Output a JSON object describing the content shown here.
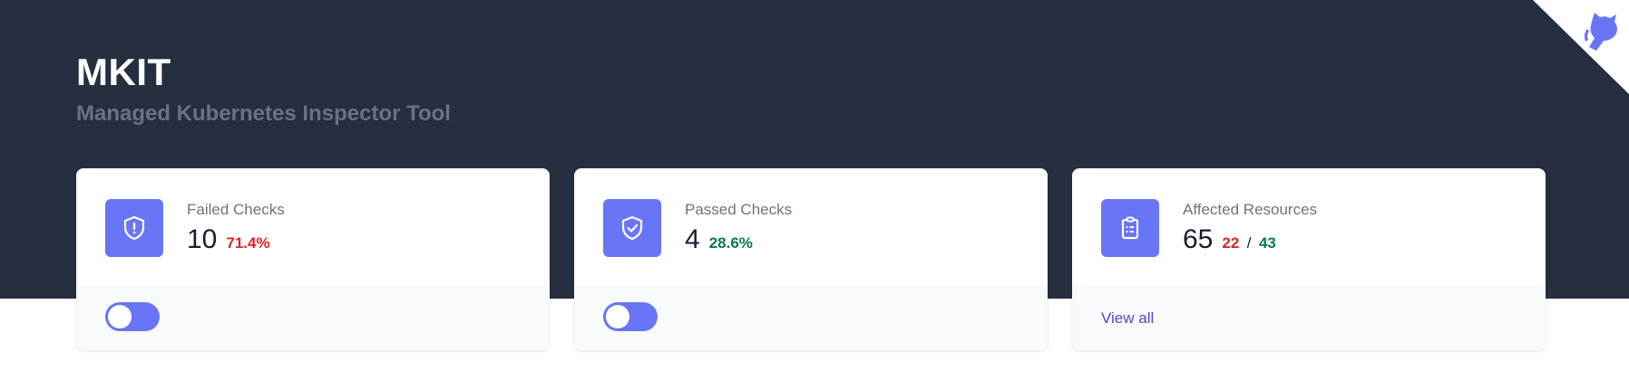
{
  "header": {
    "title": "MKIT",
    "subtitle": "Managed Kubernetes Inspector Tool"
  },
  "corner": {
    "icon": "github-octocat-icon",
    "color": "#6875f5"
  },
  "cards": [
    {
      "label": "Failed Checks",
      "value": "10",
      "percent": "71.4%",
      "icon": "shield-exclamation-icon",
      "toggle_on": true
    },
    {
      "label": "Passed Checks",
      "value": "4",
      "percent": "28.6%",
      "icon": "shield-check-icon",
      "toggle_on": true
    },
    {
      "label": "Affected Resources",
      "value": "65",
      "failed": "22",
      "separator": "/",
      "passed": "43",
      "icon": "clipboard-list-icon",
      "link": "View all"
    }
  ],
  "colors": {
    "header_bg": "#252f3f",
    "accent": "#6875f5",
    "fail": "#e02424",
    "pass": "#057a55",
    "link": "#5145cd"
  }
}
